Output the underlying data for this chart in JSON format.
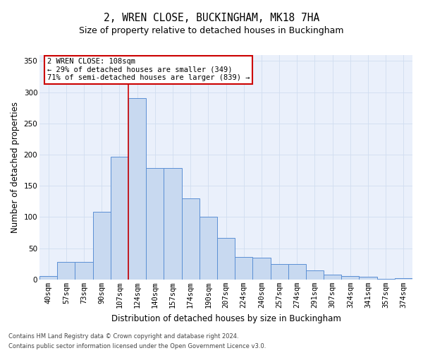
{
  "title1": "2, WREN CLOSE, BUCKINGHAM, MK18 7HA",
  "title2": "Size of property relative to detached houses in Buckingham",
  "xlabel": "Distribution of detached houses by size in Buckingham",
  "ylabel": "Number of detached properties",
  "categories": [
    "40sqm",
    "57sqm",
    "73sqm",
    "90sqm",
    "107sqm",
    "124sqm",
    "140sqm",
    "157sqm",
    "174sqm",
    "190sqm",
    "207sqm",
    "224sqm",
    "240sqm",
    "257sqm",
    "274sqm",
    "291sqm",
    "307sqm",
    "324sqm",
    "341sqm",
    "357sqm",
    "374sqm"
  ],
  "values": [
    5,
    28,
    28,
    108,
    197,
    290,
    178,
    178,
    130,
    101,
    67,
    36,
    35,
    25,
    25,
    15,
    8,
    6,
    4,
    1,
    2
  ],
  "bar_color": "#c8d9f0",
  "bar_edge_color": "#5b8fd4",
  "red_line_index": 4.5,
  "annotation_text_line1": "2 WREN CLOSE: 108sqm",
  "annotation_text_line2": "← 29% of detached houses are smaller (349)",
  "annotation_text_line3": "71% of semi-detached houses are larger (839) →",
  "ylim": [
    0,
    360
  ],
  "yticks": [
    0,
    50,
    100,
    150,
    200,
    250,
    300,
    350
  ],
  "bg_color": "#eaf0fb",
  "grid_color": "#d0ddf0",
  "footer1": "Contains HM Land Registry data © Crown copyright and database right 2024.",
  "footer2": "Contains public sector information licensed under the Open Government Licence v3.0.",
  "annotation_box_facecolor": "#ffffff",
  "annotation_box_edgecolor": "#cc0000",
  "red_line_color": "#cc0000",
  "title1_fontsize": 10.5,
  "title2_fontsize": 9,
  "axis_label_fontsize": 8.5,
  "tick_fontsize": 7.5,
  "annotation_fontsize": 7.5,
  "footer_fontsize": 6.0
}
